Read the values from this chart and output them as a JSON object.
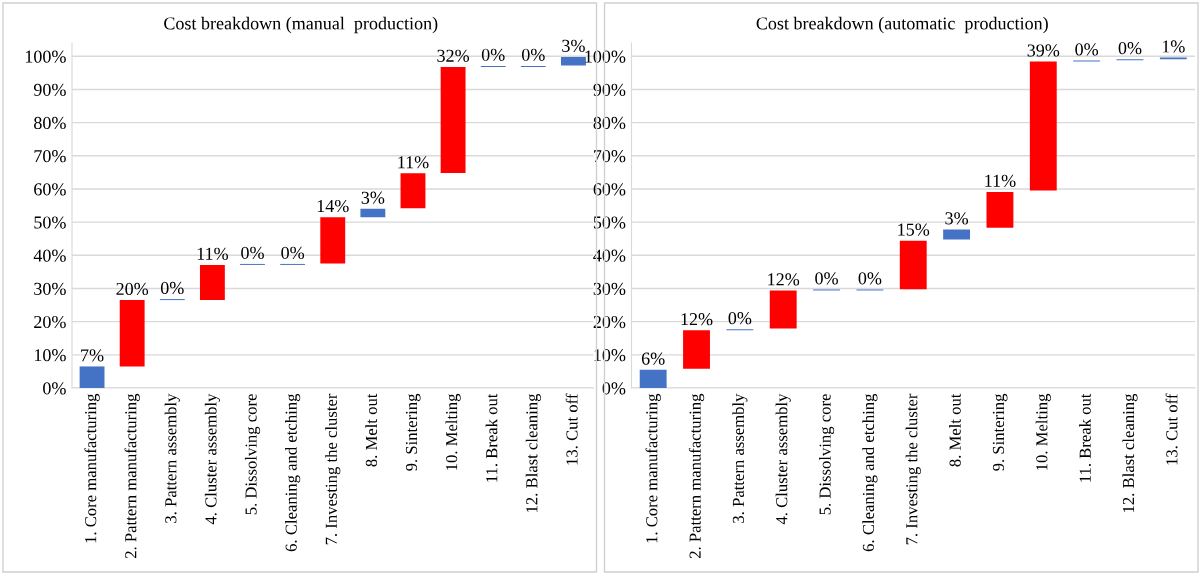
{
  "chart_data": [
    {
      "type": "bar",
      "title": "Cost breakdown (manual  production)",
      "categories": [
        "1. Core manufacturing",
        "2. Pattern manufacturing",
        "3. Pattern assembly",
        "4. Cluster assembly",
        "5. Dissolving core",
        "6. Cleaning and etching",
        "7. Investing the cluster",
        "8. Melt out",
        "9. Sintering",
        "10. Melting",
        "11. Break out",
        "12. Blast cleaning",
        "13. Cut off"
      ],
      "base": [
        0,
        6.5,
        26.5,
        26.5,
        37.1,
        37.1,
        37.5,
        51.5,
        54.2,
        64.8,
        96.8,
        96.8,
        97.2
      ],
      "values": [
        6.5,
        20,
        0.3,
        10.6,
        0.3,
        0.3,
        14,
        2.5,
        10.5,
        32,
        0.3,
        0.3,
        2.6
      ],
      "colors": [
        "#4472c4",
        "#ff0000",
        "#4472c4",
        "#ff0000",
        "#4472c4",
        "#4472c4",
        "#ff0000",
        "#4472c4",
        "#ff0000",
        "#ff0000",
        "#4472c4",
        "#4472c4",
        "#4472c4"
      ],
      "value_labels": [
        "7%",
        "20%",
        "0%",
        "11%",
        "0%",
        "0%",
        "14%",
        "3%",
        "11%",
        "32%",
        "0%",
        "0%",
        "3%"
      ],
      "ylim": [
        0,
        104
      ],
      "yticks": [
        {
          "value": 0,
          "label": "0%"
        },
        {
          "value": 10,
          "label": "10%"
        },
        {
          "value": 20,
          "label": "20%"
        },
        {
          "value": 30,
          "label": "30%"
        },
        {
          "value": 40,
          "label": "40%"
        },
        {
          "value": 50,
          "label": "50%"
        },
        {
          "value": 60,
          "label": "60%"
        },
        {
          "value": 70,
          "label": "70%"
        },
        {
          "value": 80,
          "label": "80%"
        },
        {
          "value": 90,
          "label": "90%"
        },
        {
          "value": 100,
          "label": "100%"
        }
      ],
      "grid": "y"
    },
    {
      "type": "bar",
      "title": "Cost breakdown (automatic  production)",
      "categories": [
        "1. Core manufacturing",
        "2. Pattern manufacturing",
        "3. Pattern assembly",
        "4. Cluster assembly",
        "5. Dissolving core",
        "6. Cleaning and etching",
        "7. Investing the cluster",
        "8. Melt out",
        "9. Sintering",
        "10. Melting",
        "11. Break out",
        "12. Blast cleaning",
        "13. Cut off"
      ],
      "base": [
        0,
        5.8,
        17.4,
        17.9,
        29.4,
        29.4,
        29.8,
        44.8,
        48.3,
        59.5,
        98.4,
        98.8,
        99.1
      ],
      "values": [
        5.5,
        11.6,
        0.3,
        11.5,
        0.3,
        0.3,
        14.6,
        3,
        10.8,
        38.9,
        0.3,
        0.3,
        0.5
      ],
      "colors": [
        "#4472c4",
        "#ff0000",
        "#4472c4",
        "#ff0000",
        "#4472c4",
        "#4472c4",
        "#ff0000",
        "#4472c4",
        "#ff0000",
        "#ff0000",
        "#4472c4",
        "#4472c4",
        "#4472c4"
      ],
      "value_labels": [
        "6%",
        "12%",
        "0%",
        "12%",
        "0%",
        "0%",
        "15%",
        "3%",
        "11%",
        "39%",
        "0%",
        "0%",
        "1%"
      ],
      "ylim": [
        0,
        104
      ],
      "yticks": [
        {
          "value": 0,
          "label": "0%"
        },
        {
          "value": 10,
          "label": "10%"
        },
        {
          "value": 20,
          "label": "20%"
        },
        {
          "value": 30,
          "label": "30%"
        },
        {
          "value": 40,
          "label": "40%"
        },
        {
          "value": 50,
          "label": "50%"
        },
        {
          "value": 60,
          "label": "60%"
        },
        {
          "value": 70,
          "label": "70%"
        },
        {
          "value": 80,
          "label": "80%"
        },
        {
          "value": 90,
          "label": "90%"
        },
        {
          "value": 100,
          "label": "100%"
        }
      ],
      "grid": "y"
    }
  ]
}
